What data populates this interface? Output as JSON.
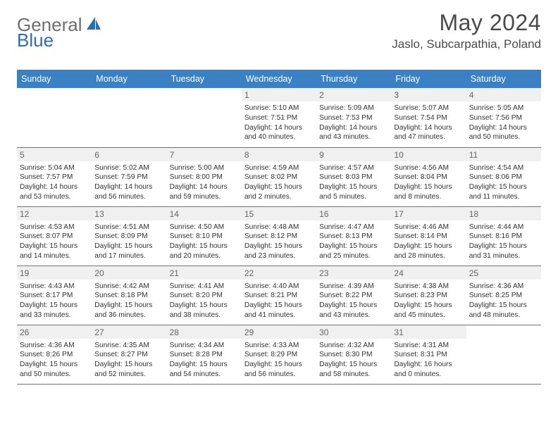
{
  "colors": {
    "header_bg": "#3a80c3",
    "header_text": "#ffffff",
    "daynum_bg": "#f0f0f0",
    "daynum_text": "#666666",
    "body_text": "#333333",
    "title_text": "#4a4a4a",
    "logo_gray": "#6d6e71",
    "logo_blue": "#2f6fa7",
    "page_bg": "#ffffff",
    "rule": "#3a80c3"
  },
  "logo": {
    "word1": "General",
    "word2": "Blue"
  },
  "title": "May 2024",
  "location": "Jaslo, Subcarpathia, Poland",
  "weekdays": [
    "Sunday",
    "Monday",
    "Tuesday",
    "Wednesday",
    "Thursday",
    "Friday",
    "Saturday"
  ],
  "weeks": [
    [
      {
        "blank": true
      },
      {
        "blank": true
      },
      {
        "blank": true
      },
      {
        "num": "1",
        "sunrise": "5:10 AM",
        "sunset": "7:51 PM",
        "daylight": "14 hours and 40 minutes."
      },
      {
        "num": "2",
        "sunrise": "5:09 AM",
        "sunset": "7:53 PM",
        "daylight": "14 hours and 43 minutes."
      },
      {
        "num": "3",
        "sunrise": "5:07 AM",
        "sunset": "7:54 PM",
        "daylight": "14 hours and 47 minutes."
      },
      {
        "num": "4",
        "sunrise": "5:05 AM",
        "sunset": "7:56 PM",
        "daylight": "14 hours and 50 minutes."
      }
    ],
    [
      {
        "num": "5",
        "sunrise": "5:04 AM",
        "sunset": "7:57 PM",
        "daylight": "14 hours and 53 minutes."
      },
      {
        "num": "6",
        "sunrise": "5:02 AM",
        "sunset": "7:59 PM",
        "daylight": "14 hours and 56 minutes."
      },
      {
        "num": "7",
        "sunrise": "5:00 AM",
        "sunset": "8:00 PM",
        "daylight": "14 hours and 59 minutes."
      },
      {
        "num": "8",
        "sunrise": "4:59 AM",
        "sunset": "8:02 PM",
        "daylight": "15 hours and 2 minutes."
      },
      {
        "num": "9",
        "sunrise": "4:57 AM",
        "sunset": "8:03 PM",
        "daylight": "15 hours and 5 minutes."
      },
      {
        "num": "10",
        "sunrise": "4:56 AM",
        "sunset": "8:04 PM",
        "daylight": "15 hours and 8 minutes."
      },
      {
        "num": "11",
        "sunrise": "4:54 AM",
        "sunset": "8:06 PM",
        "daylight": "15 hours and 11 minutes."
      }
    ],
    [
      {
        "num": "12",
        "sunrise": "4:53 AM",
        "sunset": "8:07 PM",
        "daylight": "15 hours and 14 minutes."
      },
      {
        "num": "13",
        "sunrise": "4:51 AM",
        "sunset": "8:09 PM",
        "daylight": "15 hours and 17 minutes."
      },
      {
        "num": "14",
        "sunrise": "4:50 AM",
        "sunset": "8:10 PM",
        "daylight": "15 hours and 20 minutes."
      },
      {
        "num": "15",
        "sunrise": "4:48 AM",
        "sunset": "8:12 PM",
        "daylight": "15 hours and 23 minutes."
      },
      {
        "num": "16",
        "sunrise": "4:47 AM",
        "sunset": "8:13 PM",
        "daylight": "15 hours and 25 minutes."
      },
      {
        "num": "17",
        "sunrise": "4:46 AM",
        "sunset": "8:14 PM",
        "daylight": "15 hours and 28 minutes."
      },
      {
        "num": "18",
        "sunrise": "4:44 AM",
        "sunset": "8:16 PM",
        "daylight": "15 hours and 31 minutes."
      }
    ],
    [
      {
        "num": "19",
        "sunrise": "4:43 AM",
        "sunset": "8:17 PM",
        "daylight": "15 hours and 33 minutes."
      },
      {
        "num": "20",
        "sunrise": "4:42 AM",
        "sunset": "8:18 PM",
        "daylight": "15 hours and 36 minutes."
      },
      {
        "num": "21",
        "sunrise": "4:41 AM",
        "sunset": "8:20 PM",
        "daylight": "15 hours and 38 minutes."
      },
      {
        "num": "22",
        "sunrise": "4:40 AM",
        "sunset": "8:21 PM",
        "daylight": "15 hours and 41 minutes."
      },
      {
        "num": "23",
        "sunrise": "4:39 AM",
        "sunset": "8:22 PM",
        "daylight": "15 hours and 43 minutes."
      },
      {
        "num": "24",
        "sunrise": "4:38 AM",
        "sunset": "8:23 PM",
        "daylight": "15 hours and 45 minutes."
      },
      {
        "num": "25",
        "sunrise": "4:36 AM",
        "sunset": "8:25 PM",
        "daylight": "15 hours and 48 minutes."
      }
    ],
    [
      {
        "num": "26",
        "sunrise": "4:36 AM",
        "sunset": "8:26 PM",
        "daylight": "15 hours and 50 minutes."
      },
      {
        "num": "27",
        "sunrise": "4:35 AM",
        "sunset": "8:27 PM",
        "daylight": "15 hours and 52 minutes."
      },
      {
        "num": "28",
        "sunrise": "4:34 AM",
        "sunset": "8:28 PM",
        "daylight": "15 hours and 54 minutes."
      },
      {
        "num": "29",
        "sunrise": "4:33 AM",
        "sunset": "8:29 PM",
        "daylight": "15 hours and 56 minutes."
      },
      {
        "num": "30",
        "sunrise": "4:32 AM",
        "sunset": "8:30 PM",
        "daylight": "15 hours and 58 minutes."
      },
      {
        "num": "31",
        "sunrise": "4:31 AM",
        "sunset": "8:31 PM",
        "daylight": "16 hours and 0 minutes."
      },
      {
        "blank": true
      }
    ]
  ],
  "labels": {
    "sunrise": "Sunrise:",
    "sunset": "Sunset:",
    "daylight": "Daylight:"
  }
}
